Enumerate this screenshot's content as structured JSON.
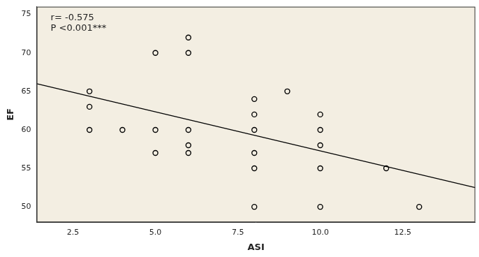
{
  "chart_data": {
    "type": "scatter",
    "x_label": "ASI",
    "y_label": "EF",
    "annotations": [
      "r= -0.575",
      "P <0.001***"
    ],
    "xlim": [
      1.4,
      14.7
    ],
    "xticks": [
      2.5,
      {
        "value": 5,
        "label": "5.0"
      },
      7.5,
      {
        "value": 10,
        "label": "10.0"
      },
      12.5
    ],
    "ylim": [
      48,
      76
    ],
    "yticks": [
      50,
      55,
      60,
      65,
      70,
      75
    ],
    "grid": false,
    "series": [
      {
        "type": "scatter",
        "marker": "circle",
        "color": "#000000",
        "x": [
          3,
          3,
          3,
          4,
          5,
          5,
          5,
          6,
          6,
          6,
          6,
          6,
          8,
          8,
          8,
          8,
          8,
          8,
          9,
          10,
          10,
          10,
          10,
          10,
          12,
          13
        ],
        "values": [
          65,
          63,
          60,
          60,
          70,
          60,
          57,
          72,
          70,
          60,
          58,
          57,
          64,
          62,
          60,
          57,
          55,
          50,
          65,
          62,
          60,
          58,
          55,
          50,
          55,
          50
        ]
      },
      {
        "type": "line",
        "line_style": "solid",
        "color": "#000000",
        "x": [
          1.4,
          14.7
        ],
        "values": [
          66.0,
          52.5
        ]
      }
    ]
  }
}
